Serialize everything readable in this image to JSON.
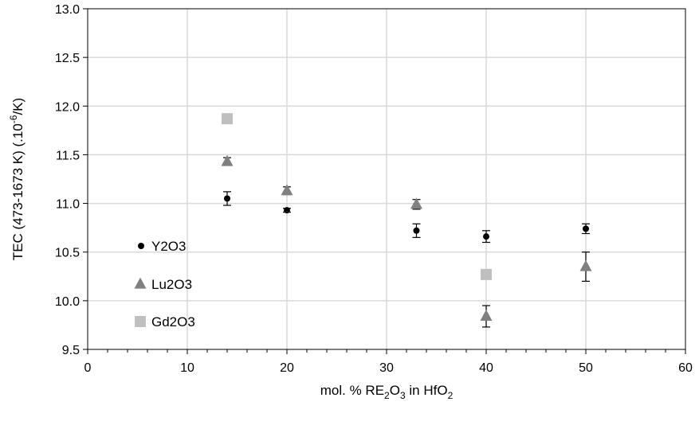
{
  "chart_data": {
    "type": "scatter",
    "title": "",
    "xlabel": "mol. % RE₂O₃ in HfO₂",
    "ylabel": "TEC (473-1673 K) (.10⁻⁶/K)",
    "xlim": [
      0,
      60
    ],
    "ylim": [
      9.5,
      13.0
    ],
    "x_ticks": [
      "0",
      "10",
      "20",
      "30",
      "40",
      "50",
      "60"
    ],
    "y_ticks": [
      "9.5",
      "10.0",
      "10.5",
      "11.0",
      "11.5",
      "12.0",
      "12.5",
      "13.0"
    ],
    "grid": true,
    "legend_position": "left",
    "series": [
      {
        "name": "Y2O3",
        "marker": "circle",
        "color": "#000000",
        "points": [
          {
            "x": 14,
            "y": 11.05,
            "err": 0.07
          },
          {
            "x": 20,
            "y": 10.93,
            "err": 0.02
          },
          {
            "x": 33,
            "y": 10.72,
            "err": 0.07
          },
          {
            "x": 40,
            "y": 10.66,
            "err": 0.06
          },
          {
            "x": 50,
            "y": 10.74,
            "err": 0.05
          }
        ]
      },
      {
        "name": "Lu2O3",
        "marker": "triangle",
        "color": "#808080",
        "points": [
          {
            "x": 14,
            "y": 11.43,
            "err": 0.04
          },
          {
            "x": 20,
            "y": 11.13,
            "err": 0.04
          },
          {
            "x": 33,
            "y": 10.99,
            "err": 0.05
          },
          {
            "x": 40,
            "y": 9.84,
            "err": 0.11
          },
          {
            "x": 50,
            "y": 10.35,
            "err": 0.15
          }
        ]
      },
      {
        "name": "Gd2O3",
        "marker": "square",
        "color": "#bfbfbf",
        "points": [
          {
            "x": 14,
            "y": 11.87
          },
          {
            "x": 40,
            "y": 10.27
          }
        ]
      }
    ]
  }
}
